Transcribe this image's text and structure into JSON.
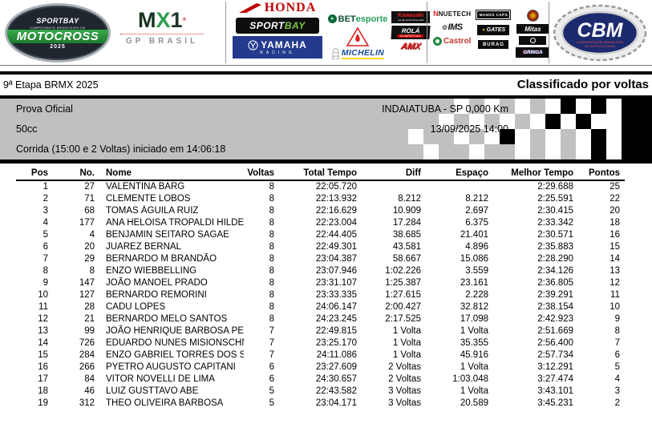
{
  "colors": {
    "info_bg": "#c0c0c0",
    "line": "#000000",
    "honda_red": "#c00000",
    "yamaha_blue": "#243a8f",
    "mx_green": "#2f9e4f",
    "cbm_navy": "#1c2a6e"
  },
  "banner": {
    "series_logo": {
      "line1": "SPORTBAY",
      "line2": "CAMPEONATO BRASILEIRO DE",
      "line3": "MOTOCROSS",
      "line4": "2025"
    },
    "mx1": {
      "m": "M",
      "x": "X",
      "one": "1",
      "subtitle": "GP BRASIL"
    },
    "honda": "HONDA",
    "sportbay_box": {
      "part1": "SPORT",
      "part2": "BAY"
    },
    "yamaha": {
      "name": "YAMAHA",
      "sub": "RACING"
    },
    "betesporte": {
      "part1": "BET",
      "part2": "esporte"
    },
    "michelin": "MICHELIN",
    "kawasaki": {
      "name": "Kawasaki",
      "sub": "Let the Good Times Roll"
    },
    "rola": {
      "name": "ROLÁ",
      "sub": "DA IMPORTADA"
    },
    "amx": "AMX",
    "nuetech": {
      "n": "N",
      "name": "NUETECH"
    },
    "manos_caps": "MANOS CAPS",
    "ims": "IMS",
    "gates": "GATES",
    "mitas": "Mitas",
    "castrol": "Castrol",
    "burag": "BURAG",
    "gringa": "GRINGA",
    "cbm": {
      "name": "CBM",
      "sub1": "CONFEDERAÇÃO BRASILEIRA",
      "sub2": "DE MOTOCICLISMO"
    }
  },
  "header": {
    "event_title": "9ª Etapa BRMX 2025",
    "report_title": "Classificado por voltas"
  },
  "info": {
    "race_name": "Prova Oficial",
    "location": "INDAIATUBA - SP 0,000 Km",
    "category": "50cc",
    "datetime": "13/09/2025 14:00",
    "race_detail": "Corrida (15:00 e 2 Voltas) iniciado em 14:06:18"
  },
  "table": {
    "columns": [
      "Pos",
      "No.",
      "Nome",
      "Voltas",
      "Total Tempo",
      "Diff",
      "Espaço",
      "Melhor Tempo",
      "Pontos"
    ],
    "col_keys": [
      "pos",
      "no",
      "nome",
      "voltas",
      "total-tempo",
      "diff",
      "espaco",
      "melhor-tempo",
      "pontos"
    ],
    "rows": [
      [
        "1",
        "27",
        "VALENTINA BARG",
        "8",
        "22:05.720",
        "",
        "",
        "2:29.688",
        "25"
      ],
      [
        "2",
        "71",
        "CLEMENTE LOBOS",
        "8",
        "22:13.932",
        "8.212",
        "8.212",
        "2:25.591",
        "22"
      ],
      [
        "3",
        "68",
        "TOMAS ÁGUILA RUIZ",
        "8",
        "22:16.629",
        "10.909",
        "2.697",
        "2:30.415",
        "20"
      ],
      [
        "4",
        "177",
        "ANA HELOISA TROPALDI HILDEE",
        "8",
        "22:23.004",
        "17.284",
        "6.375",
        "2:33.342",
        "18"
      ],
      [
        "5",
        "4",
        "BENJAMIN SEITARO SAGAE",
        "8",
        "22:44.405",
        "38.685",
        "21.401",
        "2:30.571",
        "16"
      ],
      [
        "6",
        "20",
        "JUAREZ BERNAL",
        "8",
        "22:49.301",
        "43.581",
        "4.896",
        "2:35.883",
        "15"
      ],
      [
        "7",
        "29",
        "BERNARDO M BRANDÃO",
        "8",
        "23:04.387",
        "58.667",
        "15.086",
        "2:28.290",
        "14"
      ],
      [
        "8",
        "8",
        "ENZO WIEBBELLING",
        "8",
        "23:07.946",
        "1:02.226",
        "3.559",
        "2:34.126",
        "13"
      ],
      [
        "9",
        "147",
        "JOÃO MANOEL PRADO",
        "8",
        "23:31.107",
        "1:25.387",
        "23.161",
        "2:36.805",
        "12"
      ],
      [
        "10",
        "127",
        "BERNARDO REMORINI",
        "8",
        "23:33.335",
        "1:27.615",
        "2.228",
        "2:39.291",
        "11"
      ],
      [
        "11",
        "28",
        "CADU LOPES",
        "8",
        "24:06.147",
        "2:00.427",
        "32.812",
        "2:38.154",
        "10"
      ],
      [
        "12",
        "21",
        "BERNARDO MELO SANTOS",
        "8",
        "24:23.245",
        "2:17.525",
        "17.098",
        "2:42.923",
        "9"
      ],
      [
        "13",
        "99",
        "JOÃO HENRIQUE BARBOSA PERE",
        "7",
        "22:49.815",
        "1 Volta",
        "1 Volta",
        "2:51.669",
        "8"
      ],
      [
        "14",
        "726",
        "EDUARDO NUNES MISIONSCHNI",
        "7",
        "23:25.170",
        "1 Volta",
        "35.355",
        "2:56.400",
        "7"
      ],
      [
        "15",
        "284",
        "ENZO GABRIEL TORRES DOS SA",
        "7",
        "24:11.086",
        "1 Volta",
        "45.916",
        "2:57.734",
        "6"
      ],
      [
        "16",
        "266",
        "PYETRO AUGUSTO CAPITANI",
        "6",
        "23:27.609",
        "2 Voltas",
        "1 Volta",
        "3:12.291",
        "5"
      ],
      [
        "17",
        "84",
        "VITOR NOVELLI DE LIMA",
        "6",
        "24:30.657",
        "2 Voltas",
        "1:03.048",
        "3:27.474",
        "4"
      ],
      [
        "18",
        "46",
        "LUIZ GUSTTAVO ABE",
        "5",
        "22:43.582",
        "3 Voltas",
        "1 Volta",
        "3:43.101",
        "3"
      ],
      [
        "19",
        "312",
        "THEO OLIVEIRA BARBOSA",
        "5",
        "23:04.171",
        "3 Voltas",
        "20.589",
        "3:45.231",
        "2"
      ]
    ]
  }
}
